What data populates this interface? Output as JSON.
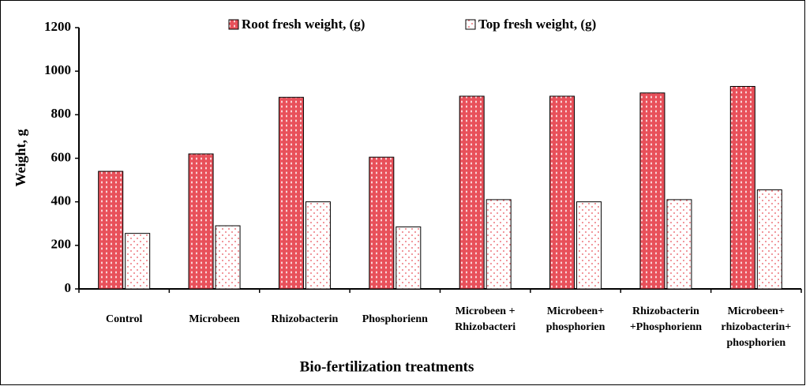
{
  "chart_data": {
    "type": "bar",
    "x_label": "Bio-fertilization treatments",
    "y_label": "Weight, g",
    "categories": [
      [
        "Control"
      ],
      [
        "Microbeen"
      ],
      [
        "Rhizobacterin"
      ],
      [
        "Phosphorienn"
      ],
      [
        "Microbeen +",
        "Rhizobacteri"
      ],
      [
        "Microbeen+",
        "phosphorien"
      ],
      [
        "Rhizobacterin",
        "+Phosphorienn"
      ],
      [
        "Microbeen+",
        "rhizobacterin+",
        "phosphorien"
      ]
    ],
    "series": [
      {
        "name": "Root fresh weight, (g)",
        "color": "#e8505a",
        "values": [
          540,
          620,
          880,
          605,
          885,
          885,
          900,
          930
        ]
      },
      {
        "name": "Top fresh weight, (g)",
        "color": "#ffffff",
        "values": [
          255,
          290,
          400,
          285,
          410,
          400,
          410,
          455
        ]
      }
    ],
    "ylim": [
      0,
      1200
    ],
    "yticks": [
      0,
      200,
      400,
      600,
      800,
      1000,
      1200
    ]
  }
}
